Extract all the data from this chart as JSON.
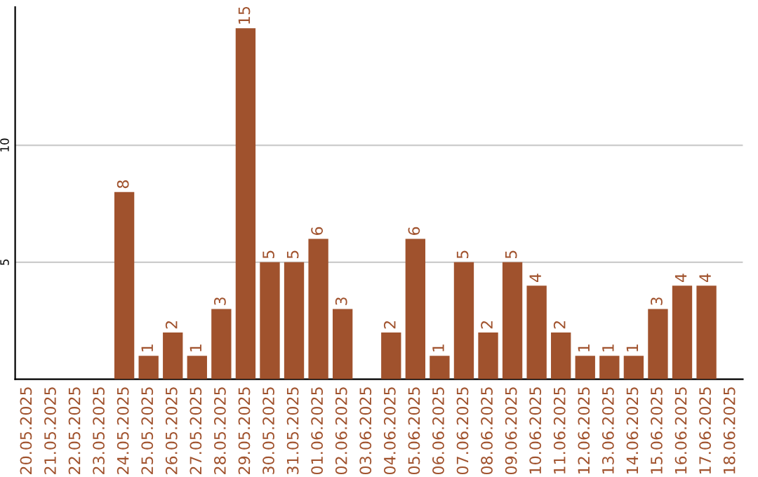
{
  "chart_data": {
    "type": "bar",
    "categories": [
      "20.05.2025",
      "21.05.2025",
      "22.05.2025",
      "23.05.2025",
      "24.05.2025",
      "25.05.2025",
      "26.05.2025",
      "27.05.2025",
      "28.05.2025",
      "29.05.2025",
      "30.05.2025",
      "31.05.2025",
      "01.06.2025",
      "02.06.2025",
      "03.06.2025",
      "04.06.2025",
      "05.06.2025",
      "06.06.2025",
      "07.06.2025",
      "08.06.2025",
      "09.06.2025",
      "10.06.2025",
      "11.06.2025",
      "12.06.2025",
      "13.06.2025",
      "14.06.2025",
      "15.06.2025",
      "16.06.2025",
      "17.06.2025",
      "18.06.2025"
    ],
    "values": [
      0,
      0,
      0,
      0,
      8,
      1,
      2,
      1,
      3,
      15,
      5,
      5,
      6,
      3,
      0,
      2,
      6,
      1,
      5,
      2,
      5,
      4,
      2,
      1,
      1,
      1,
      3,
      4,
      4,
      0
    ],
    "value_labels": [
      null,
      null,
      null,
      null,
      "8",
      "1",
      "2",
      "1",
      "3",
      "15",
      "5",
      "5",
      "6",
      "3",
      null,
      "2",
      "6",
      "1",
      "5",
      "2",
      "5",
      "4",
      "2",
      "1",
      "1",
      "1",
      "3",
      "4",
      "4",
      null
    ],
    "color": "#a0522d",
    "ylim": [
      0,
      15.9
    ],
    "yticks": [
      {
        "value": 0,
        "label": null
      },
      5,
      10
    ],
    "grid": "y"
  }
}
